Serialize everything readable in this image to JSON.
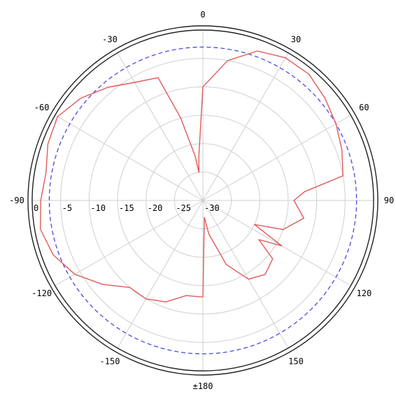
{
  "chart_data": {
    "type": "polar-line",
    "title": "",
    "angle_labels": [
      {
        "deg": 0,
        "text": "0"
      },
      {
        "deg": 30,
        "text": "30"
      },
      {
        "deg": 60,
        "text": "60"
      },
      {
        "deg": 90,
        "text": "90"
      },
      {
        "deg": 120,
        "text": "120"
      },
      {
        "deg": 150,
        "text": "150"
      },
      {
        "deg": 180,
        "text": "±180"
      },
      {
        "deg": -150,
        "text": "-150"
      },
      {
        "deg": -120,
        "text": "-120"
      },
      {
        "deg": -90,
        "text": "-90"
      },
      {
        "deg": -60,
        "text": "-60"
      },
      {
        "deg": -30,
        "text": "-30"
      }
    ],
    "radial_ticks": [
      "0",
      "-5",
      "-10",
      "-15",
      "-20",
      "-25",
      "-30"
    ],
    "rlim": [
      -30,
      0
    ],
    "reference_dB": -3,
    "grid": true,
    "series": [
      {
        "color": "#e05a5a",
        "points": [
          [
            -180,
            -13
          ],
          [
            -170,
            -13
          ],
          [
            -160,
            -11
          ],
          [
            -150,
            -10
          ],
          [
            -140,
            -10
          ],
          [
            -130,
            -7
          ],
          [
            -120,
            -4
          ],
          [
            -110,
            -2
          ],
          [
            -100,
            -1
          ],
          [
            -90,
            -1.5
          ],
          [
            -80,
            -2
          ],
          [
            -70,
            -1
          ],
          [
            -60,
            -0.5
          ],
          [
            -50,
            -2
          ],
          [
            -40,
            -4
          ],
          [
            -30,
            -6
          ],
          [
            -20,
            -7
          ],
          [
            -15,
            -15
          ],
          [
            -10,
            -22
          ],
          [
            -8,
            -25
          ],
          [
            -5,
            -22
          ],
          [
            0,
            -10
          ],
          [
            10,
            -5
          ],
          [
            20,
            -2
          ],
          [
            30,
            -1
          ],
          [
            40,
            -1
          ],
          [
            50,
            -2
          ],
          [
            60,
            -3
          ],
          [
            70,
            -4
          ],
          [
            80,
            -5
          ],
          [
            85,
            -12
          ],
          [
            90,
            -14
          ],
          [
            100,
            -12
          ],
          [
            110,
            -15
          ],
          [
            115,
            -20
          ],
          [
            120,
            -14
          ],
          [
            125,
            -18
          ],
          [
            130,
            -14
          ],
          [
            140,
            -13
          ],
          [
            150,
            -14
          ],
          [
            160,
            -18
          ],
          [
            170,
            -24
          ],
          [
            175,
            -27
          ],
          [
            180,
            -13
          ]
        ]
      }
    ]
  }
}
